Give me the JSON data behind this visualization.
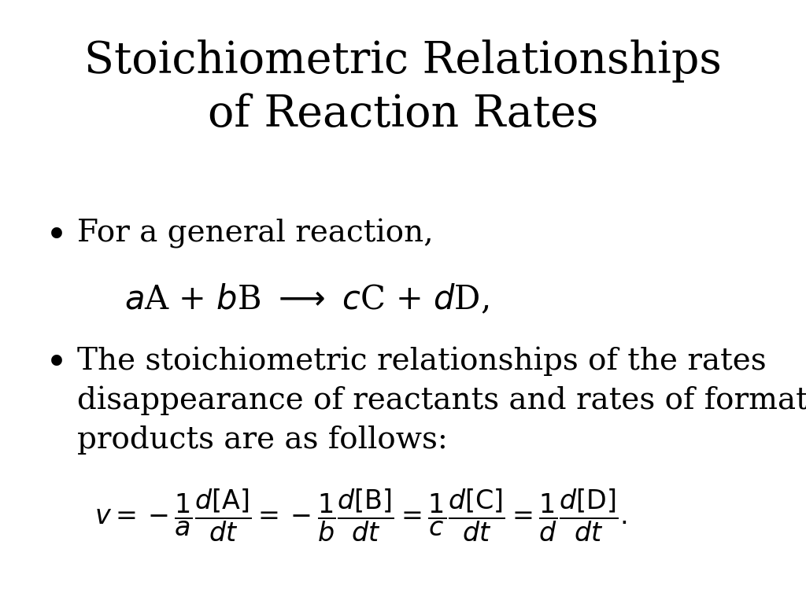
{
  "title_line1": "Stoichiometric Relationships",
  "title_line2": "of Reaction Rates",
  "title_fontsize": 40,
  "bullet1_text": "For a general reaction,",
  "bullet1_fontsize": 28,
  "reaction_fontsize": 30,
  "bullet2_line1": "The stoichiometric relationships of the rates",
  "bullet2_line2": "disappearance of reactants and rates of formation of",
  "bullet2_line3": "products are as follows:",
  "bullet2_fontsize": 28,
  "main_eq_fontsize": 24,
  "background_color": "#ffffff",
  "text_color": "#000000",
  "bullet_symbol": "•",
  "font_family": "DejaVu Serif"
}
